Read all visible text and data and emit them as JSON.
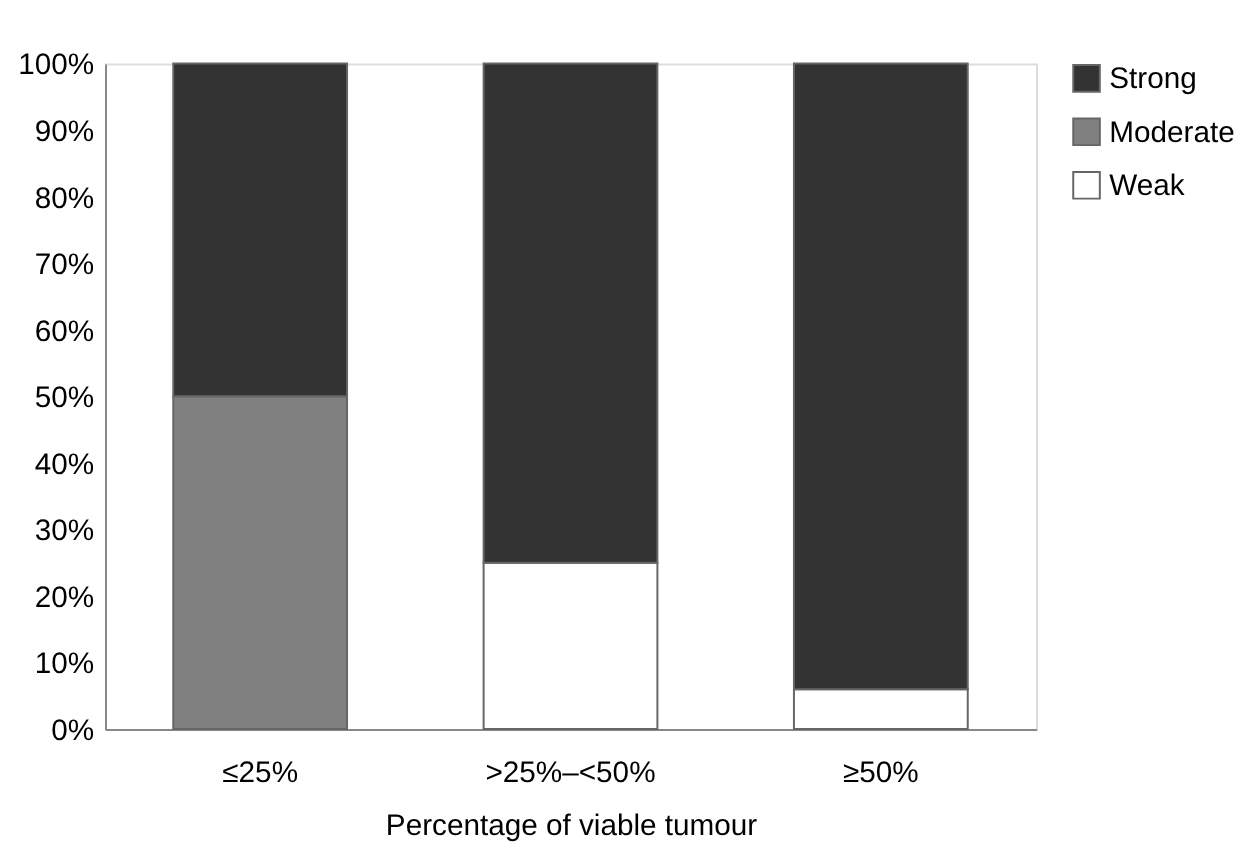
{
  "chart_data": {
    "type": "bar",
    "stacked": true,
    "xlabel": "Percentage of viable tumour",
    "categories": [
      "≤25%",
      ">25%–<50%",
      "≥50%"
    ],
    "series": [
      {
        "name": "Weak",
        "color": "#ffffff",
        "values": [
          null,
          25,
          6
        ]
      },
      {
        "name": "Moderate",
        "color": "#808080",
        "values": [
          50,
          null,
          null
        ]
      },
      {
        "name": "Strong",
        "color": "#333333",
        "values": [
          50,
          75,
          94
        ]
      }
    ],
    "ylim": [
      0,
      100
    ],
    "yticks": [
      {
        "value": 0,
        "label": "0%"
      },
      {
        "value": 10,
        "label": "10%"
      },
      {
        "value": 20,
        "label": "20%"
      },
      {
        "value": 30,
        "label": "30%"
      },
      {
        "value": 40,
        "label": "40%"
      },
      {
        "value": 50,
        "label": "50%"
      },
      {
        "value": 60,
        "label": "60%"
      },
      {
        "value": 70,
        "label": "70%"
      },
      {
        "value": 80,
        "label": "80%"
      },
      {
        "value": 90,
        "label": "90%"
      },
      {
        "value": 100,
        "label": "100%"
      }
    ],
    "grid": false,
    "legend": "right"
  }
}
